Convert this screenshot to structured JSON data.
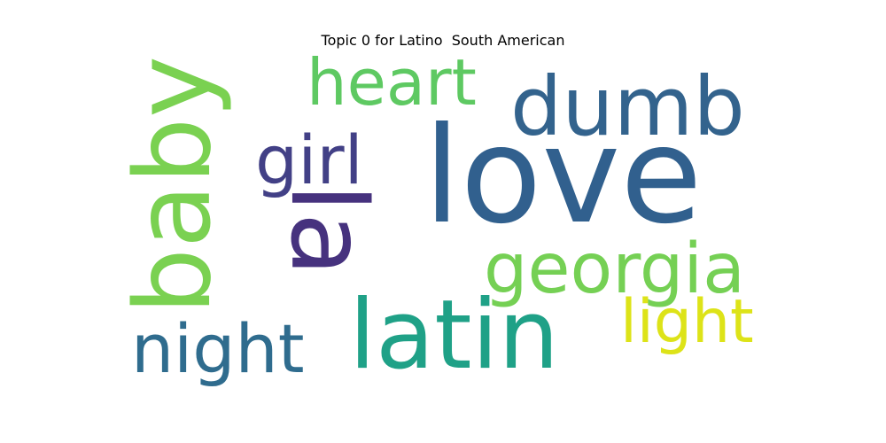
{
  "title": "Topic 0 for Latino  South American",
  "words": [
    {
      "id": "love",
      "text": "love",
      "color": "#31608e"
    },
    {
      "id": "dumb",
      "text": "dumb",
      "color": "#33638d"
    },
    {
      "id": "heart",
      "text": "heart",
      "color": "#5ec962"
    },
    {
      "id": "girl",
      "text": "girl",
      "color": "#424086"
    },
    {
      "id": "baby",
      "text": "baby",
      "color": "#7ad151"
    },
    {
      "id": "la",
      "text": "la",
      "color": "#46327e"
    },
    {
      "id": "georgia",
      "text": "georgia",
      "color": "#75d054"
    },
    {
      "id": "latin",
      "text": "latin",
      "color": "#1fa187"
    },
    {
      "id": "light",
      "text": "light",
      "color": "#dde318"
    },
    {
      "id": "night",
      "text": "night",
      "color": "#2f6c8e"
    }
  ]
}
